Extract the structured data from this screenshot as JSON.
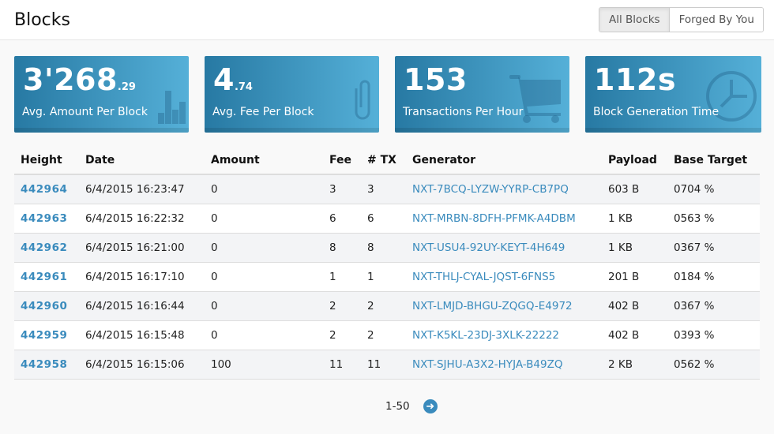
{
  "header": {
    "title": "Blocks",
    "tabs": [
      {
        "label": "All Blocks",
        "active": true
      },
      {
        "label": "Forged By You",
        "active": false
      }
    ]
  },
  "cards": [
    {
      "value": "3'268",
      "decimal": ".29",
      "label": "Avg. Amount Per Block",
      "icon": "bar-chart-icon"
    },
    {
      "value": "4",
      "decimal": ".74",
      "label": "Avg. Fee Per Block",
      "icon": "paperclip-icon"
    },
    {
      "value": "153",
      "decimal": "",
      "label": "Transactions Per Hour",
      "icon": "shopping-cart-icon"
    },
    {
      "value": "112s",
      "decimal": "",
      "label": "Block Generation Time",
      "icon": "clock-icon"
    }
  ],
  "table": {
    "columns": [
      "Height",
      "Date",
      "Amount",
      "Fee",
      "# TX",
      "Generator",
      "Payload",
      "Base Target"
    ],
    "rows": [
      [
        "442964",
        "6/4/2015 16:23:47",
        "0",
        "3",
        "3",
        "NXT-7BCQ-LYZW-YYRP-CB7PQ",
        "603 B",
        "0704 %"
      ],
      [
        "442963",
        "6/4/2015 16:22:32",
        "0",
        "6",
        "6",
        "NXT-MRBN-8DFH-PFMK-A4DBM",
        "1 KB",
        "0563 %"
      ],
      [
        "442962",
        "6/4/2015 16:21:00",
        "0",
        "8",
        "8",
        "NXT-USU4-92UY-KEYT-4H649",
        "1 KB",
        "0367 %"
      ],
      [
        "442961",
        "6/4/2015 16:17:10",
        "0",
        "1",
        "1",
        "NXT-THLJ-CYAL-JQST-6FNS5",
        "201 B",
        "0184 %"
      ],
      [
        "442960",
        "6/4/2015 16:16:44",
        "0",
        "2",
        "2",
        "NXT-LMJD-BHGU-ZQGQ-E4972",
        "402 B",
        "0367 %"
      ],
      [
        "442959",
        "6/4/2015 16:15:48",
        "0",
        "2",
        "2",
        "NXT-K5KL-23DJ-3XLK-22222",
        "402 B",
        "0393 %"
      ],
      [
        "442958",
        "6/4/2015 16:15:06",
        "100",
        "11",
        "11",
        "NXT-SJHU-A3X2-HYJA-B49ZQ",
        "2 KB",
        "0562 %"
      ]
    ]
  },
  "pagination": {
    "range": "1-50",
    "next_icon": "arrow-circle-right-icon"
  },
  "colors": {
    "accent": "#3a8bbd",
    "card_start": "#2779a3",
    "card_end": "#55b0d8"
  }
}
